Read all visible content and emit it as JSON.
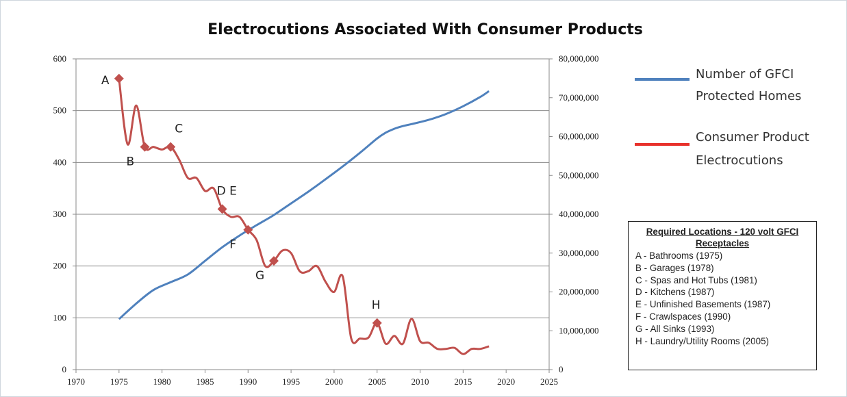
{
  "chart_data": {
    "type": "line",
    "title": "Electrocutions Associated With Consumer Products",
    "x_axis": {
      "min": 1970,
      "max": 2025,
      "ticks": [
        "1970",
        "1975",
        "1980",
        "1985",
        "1990",
        "1995",
        "2000",
        "2005",
        "2010",
        "2015",
        "2020",
        "2025"
      ]
    },
    "y_left": {
      "min": 0,
      "max": 600,
      "ticks": [
        "0",
        "100",
        "200",
        "300",
        "400",
        "500",
        "600"
      ]
    },
    "y_right": {
      "min": 0,
      "max": 80000000,
      "ticks": [
        "0",
        "10,000,000",
        "20,000,000",
        "30,000,000",
        "40,000,000",
        "50,000,000",
        "60,000,000",
        "70,000,000",
        "80,000,000"
      ]
    },
    "grid": "horizontal",
    "legend_position": "right",
    "series": [
      {
        "name": "Number of GFCI Protected Homes",
        "axis": "right",
        "color": "#4f81bd",
        "points": [
          [
            1975,
            13000000
          ],
          [
            1977,
            17000000
          ],
          [
            1979,
            20500000
          ],
          [
            1981,
            22500000
          ],
          [
            1983,
            24500000
          ],
          [
            1985,
            28000000
          ],
          [
            1987,
            31500000
          ],
          [
            1989,
            34500000
          ],
          [
            1991,
            37200000
          ],
          [
            1993,
            39800000
          ],
          [
            1995,
            42800000
          ],
          [
            1997,
            45800000
          ],
          [
            1999,
            49000000
          ],
          [
            2001,
            52300000
          ],
          [
            2003,
            55800000
          ],
          [
            2005,
            59500000
          ],
          [
            2006,
            61000000
          ],
          [
            2007,
            62000000
          ],
          [
            2008,
            62700000
          ],
          [
            2009,
            63200000
          ],
          [
            2011,
            64300000
          ],
          [
            2013,
            65800000
          ],
          [
            2015,
            67800000
          ],
          [
            2017,
            70200000
          ],
          [
            2018,
            71700000
          ]
        ]
      },
      {
        "name": "Consumer Product Electrocutions",
        "axis": "left",
        "color": "#c0504d",
        "points": [
          [
            1975,
            562
          ],
          [
            1976,
            435
          ],
          [
            1977,
            510
          ],
          [
            1978,
            430
          ],
          [
            1979,
            430
          ],
          [
            1980,
            425
          ],
          [
            1981,
            430
          ],
          [
            1982,
            405
          ],
          [
            1983,
            370
          ],
          [
            1984,
            370
          ],
          [
            1985,
            345
          ],
          [
            1986,
            350
          ],
          [
            1987,
            310
          ],
          [
            1988,
            295
          ],
          [
            1989,
            295
          ],
          [
            1990,
            270
          ],
          [
            1991,
            250
          ],
          [
            1992,
            200
          ],
          [
            1993,
            210
          ],
          [
            1994,
            230
          ],
          [
            1995,
            225
          ],
          [
            1996,
            190
          ],
          [
            1997,
            190
          ],
          [
            1998,
            200
          ],
          [
            1999,
            170
          ],
          [
            2000,
            150
          ],
          [
            2001,
            180
          ],
          [
            2002,
            60
          ],
          [
            2003,
            60
          ],
          [
            2004,
            62
          ],
          [
            2005,
            90
          ],
          [
            2006,
            50
          ],
          [
            2007,
            65
          ],
          [
            2008,
            50
          ],
          [
            2009,
            98
          ],
          [
            2010,
            55
          ],
          [
            2011,
            52
          ],
          [
            2012,
            40
          ],
          [
            2013,
            40
          ],
          [
            2014,
            42
          ],
          [
            2015,
            30
          ],
          [
            2016,
            40
          ],
          [
            2017,
            40
          ],
          [
            2018,
            45
          ]
        ]
      }
    ],
    "legend": [
      {
        "lines": [
          "Number of GFCI",
          "Protected Homes"
        ],
        "color": "#4f81bd"
      },
      {
        "lines": [
          "Consumer Product",
          "Electrocutions"
        ],
        "color": "#e8312b"
      }
    ],
    "markers": [
      {
        "label": "A",
        "x": 1975,
        "y": 562,
        "label_pos": "left"
      },
      {
        "label": "B",
        "x": 1978,
        "y": 430,
        "label_pos": "below-left"
      },
      {
        "label": "C",
        "x": 1981,
        "y": 430,
        "label_pos": "above"
      },
      {
        "label": "D E",
        "x": 1987,
        "y": 310,
        "label_pos": "above-right"
      },
      {
        "label": "F",
        "x": 1990,
        "y": 270,
        "label_pos": "below-left"
      },
      {
        "label": "G",
        "x": 1993,
        "y": 210,
        "label_pos": "below-left"
      },
      {
        "label": "H",
        "x": 2005,
        "y": 90,
        "label_pos": "above-right"
      }
    ],
    "marker_color": "#c0504d"
  },
  "locations": {
    "title": "Required Locations - 120 volt GFCI Receptacles",
    "items": [
      "A - Bathrooms (1975)",
      "B - Garages (1978)",
      "C - Spas and Hot Tubs (1981)",
      "D - Kitchens (1987)",
      "E - Unfinished Basements (1987)",
      "F - Crawlspaces (1990)",
      "G - All Sinks (1993)",
      "H - Laundry/Utility Rooms (2005)"
    ]
  }
}
